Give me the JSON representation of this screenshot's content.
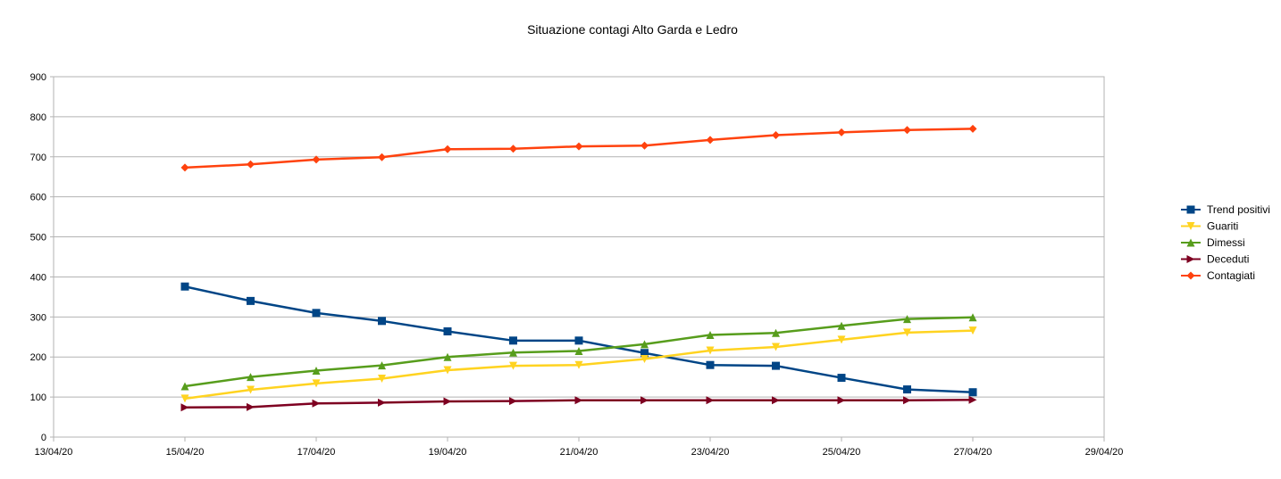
{
  "chart_data": {
    "type": "line",
    "title": "Situazione contagi Alto Garda e Ledro",
    "xlabel": "",
    "ylabel": "",
    "x_ticks": [
      "13/04/20",
      "15/04/20",
      "17/04/20",
      "19/04/20",
      "21/04/20",
      "23/04/20",
      "25/04/20",
      "27/04/20",
      "29/04/20"
    ],
    "xlim": [
      "13/04/20",
      "29/04/20"
    ],
    "y_ticks": [
      0,
      100,
      200,
      300,
      400,
      500,
      600,
      700,
      800,
      900
    ],
    "ylim": [
      0,
      900
    ],
    "grid": "horizontal",
    "legend_position": "right",
    "x": [
      "15/04/20",
      "16/04/20",
      "17/04/20",
      "18/04/20",
      "19/04/20",
      "20/04/20",
      "21/04/20",
      "22/04/20",
      "23/04/20",
      "24/04/20",
      "25/04/20",
      "26/04/20",
      "27/04/20"
    ],
    "series": [
      {
        "name": "Trend positivi",
        "color": "#004586",
        "marker": "square",
        "values": [
          376,
          340,
          310,
          290,
          264,
          241,
          241,
          210,
          180,
          178,
          148,
          119,
          112
        ]
      },
      {
        "name": "Guariti",
        "color": "#ffd320",
        "marker": "triangle-down",
        "values": [
          96,
          118,
          134,
          146,
          167,
          178,
          180,
          195,
          216,
          225,
          243,
          261,
          266
        ]
      },
      {
        "name": "Dimessi",
        "color": "#579d1c",
        "marker": "triangle-up",
        "values": [
          127,
          150,
          166,
          179,
          200,
          211,
          215,
          232,
          255,
          260,
          278,
          295,
          299
        ]
      },
      {
        "name": "Deceduti",
        "color": "#7e0021",
        "marker": "triangle-right",
        "values": [
          74,
          75,
          84,
          86,
          89,
          90,
          92,
          92,
          92,
          92,
          92,
          92,
          93
        ]
      },
      {
        "name": "Contagiati",
        "color": "#ff420e",
        "marker": "diamond",
        "values": [
          673,
          681,
          693,
          699,
          719,
          720,
          726,
          728,
          742,
          754,
          761,
          767,
          770
        ]
      }
    ]
  }
}
